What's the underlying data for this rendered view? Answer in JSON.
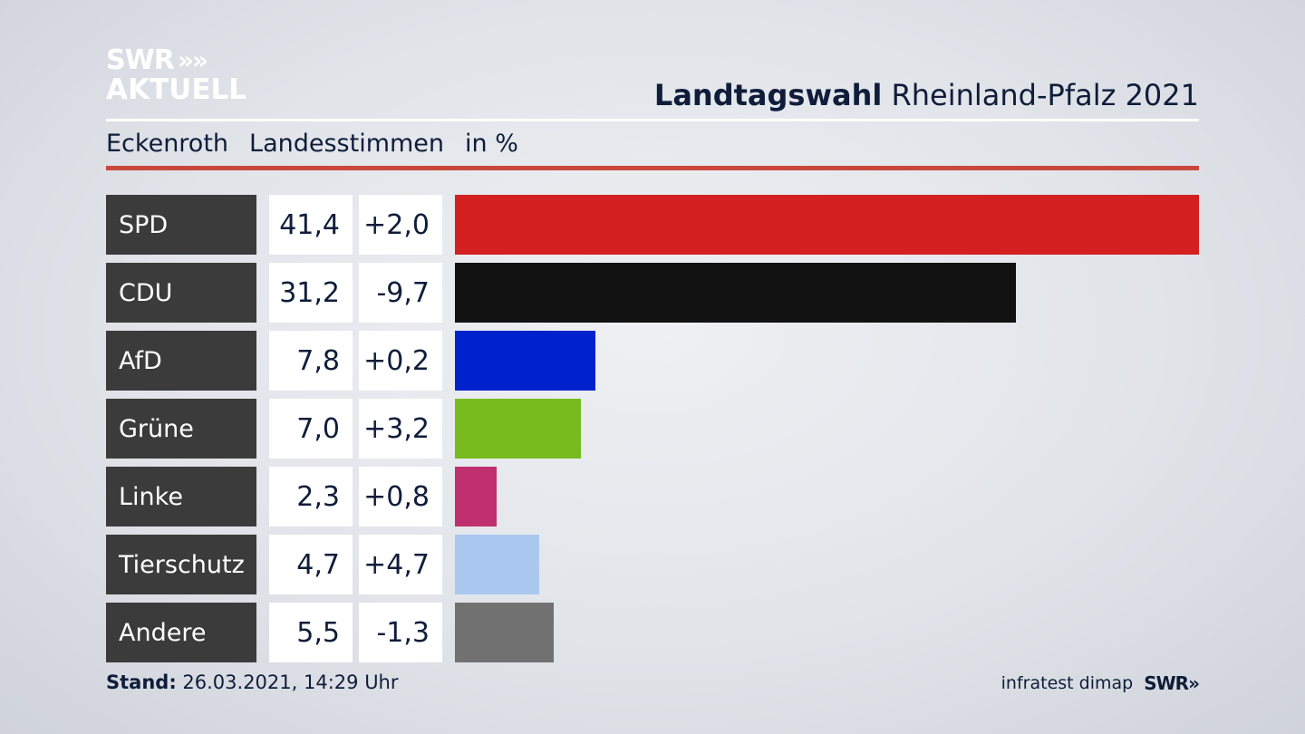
{
  "brand": {
    "line1": "SWR",
    "line2": "AKTUELL",
    "chevrons": "»"
  },
  "header": {
    "title_bold": "Landtagswahl",
    "title_rest": "Rheinland-Pfalz 2021"
  },
  "subheader": {
    "place": "Eckenroth",
    "measure": "Landesstimmen",
    "unit": "in %"
  },
  "footer": {
    "stand_label": "Stand:",
    "stand_value": "26.03.2021, 14:29 Uhr",
    "source": "infratest dimap",
    "source_brand": "SWR»"
  },
  "colors": {
    "accent_red": "#c9473b",
    "label_bg": "#3b3b3b"
  },
  "chart_data": {
    "type": "bar",
    "orientation": "horizontal",
    "categories": [
      "SPD",
      "CDU",
      "AfD",
      "Grüne",
      "Linke",
      "Tierschutz",
      "Andere"
    ],
    "series": [
      {
        "values": [
          41.4,
          31.2,
          7.8,
          7.0,
          2.3,
          4.7,
          5.5
        ]
      }
    ],
    "value_labels": [
      "41,4",
      "31,2",
      "7,8",
      "7,0",
      "2,3",
      "4,7",
      "5,5"
    ],
    "change_labels": [
      "+2,0",
      "-9,7",
      "+0,2",
      "+3,2",
      "+0,8",
      "+4,7",
      "-1,3"
    ],
    "changes": [
      2.0,
      -9.7,
      0.2,
      3.2,
      0.8,
      4.7,
      -1.3
    ],
    "bar_colors": [
      "#d42020",
      "#121212",
      "#0022cc",
      "#78bb1e",
      "#c0306e",
      "#aac8f0",
      "#717171"
    ],
    "xlim": [
      0,
      41.4
    ]
  }
}
